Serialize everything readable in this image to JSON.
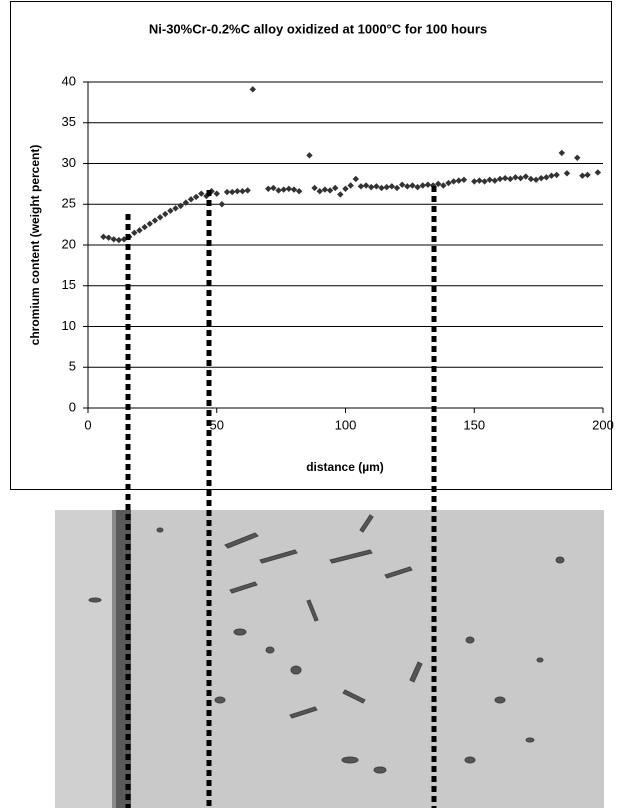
{
  "chart_data": {
    "type": "scatter",
    "title": "Ni-30%Cr-0.2%C alloy oxidized at 1000°C for 100 hours",
    "x_label": "distance (µm)",
    "y_label": "chromium content (weight percent)",
    "x": [
      6,
      8,
      10,
      12,
      14,
      16,
      18,
      20,
      22,
      24,
      26,
      28,
      30,
      32,
      34,
      36,
      38,
      40,
      42,
      44,
      46,
      48,
      50,
      52,
      54,
      56,
      58,
      60,
      62,
      64,
      70,
      72,
      74,
      76,
      78,
      80,
      82,
      86,
      88,
      90,
      92,
      94,
      96,
      98,
      100,
      102,
      104,
      106,
      108,
      110,
      112,
      114,
      116,
      118,
      120,
      122,
      124,
      126,
      128,
      130,
      132,
      134,
      136,
      138,
      140,
      142,
      144,
      146,
      150,
      152,
      154,
      156,
      158,
      160,
      162,
      164,
      166,
      168,
      170,
      172,
      174,
      176,
      178,
      180,
      182,
      184,
      186,
      190,
      192,
      194,
      198
    ],
    "values": [
      21.0,
      20.9,
      20.7,
      20.6,
      20.7,
      21.0,
      21.5,
      21.8,
      22.2,
      22.6,
      23.0,
      23.4,
      23.8,
      24.2,
      24.5,
      24.8,
      25.2,
      25.6,
      25.9,
      26.3,
      26.0,
      26.6,
      26.3,
      25.0,
      26.5,
      26.5,
      26.6,
      26.6,
      26.7,
      39.1,
      26.9,
      27.0,
      26.7,
      26.8,
      26.9,
      26.8,
      26.6,
      31.0,
      27.0,
      26.6,
      26.8,
      26.7,
      27.0,
      26.2,
      26.9,
      27.3,
      28.1,
      27.2,
      27.3,
      27.1,
      27.2,
      27.0,
      27.1,
      27.2,
      27.0,
      27.4,
      27.2,
      27.3,
      27.1,
      27.3,
      27.4,
      27.3,
      27.5,
      27.3,
      27.6,
      27.8,
      27.9,
      28.0,
      27.8,
      27.9,
      27.8,
      28.0,
      27.9,
      28.1,
      28.2,
      28.1,
      28.3,
      28.2,
      28.4,
      28.1,
      28.0,
      28.2,
      28.3,
      28.5,
      28.6,
      31.3,
      28.8,
      30.7,
      28.5,
      28.6,
      28.9
    ],
    "color": "#333333",
    "xlim": [
      0,
      200
    ],
    "xticks": [
      0,
      50,
      100,
      150,
      200
    ],
    "ylim": [
      0,
      40
    ],
    "yticks": [
      0,
      5,
      10,
      15,
      20,
      25,
      30,
      35,
      40
    ],
    "grid": true
  }
}
